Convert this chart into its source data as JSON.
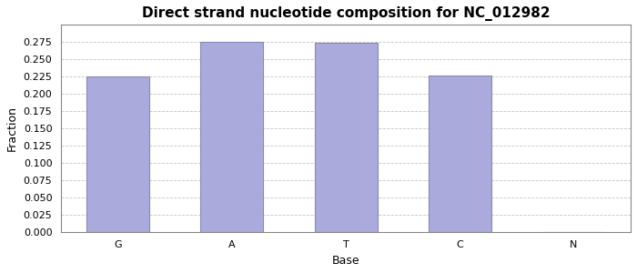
{
  "title": "Direct strand nucleotide composition for NC_012982",
  "xlabel": "Base",
  "ylabel": "Fraction",
  "categories": [
    "G",
    "A",
    "T",
    "C",
    "N"
  ],
  "values": [
    0.225,
    0.275,
    0.274,
    0.226,
    0.0
  ],
  "bar_color": "#aaaadd",
  "bar_edgecolor": "#8888bb",
  "ylim": [
    0.0,
    0.3
  ],
  "yticks": [
    0.0,
    0.025,
    0.05,
    0.075,
    0.1,
    0.125,
    0.15,
    0.175,
    0.2,
    0.225,
    0.25,
    0.275
  ],
  "background_color": "#ffffff",
  "grid_color": "#aaaaaa",
  "title_fontsize": 11,
  "axis_fontsize": 9,
  "tick_fontsize": 8
}
